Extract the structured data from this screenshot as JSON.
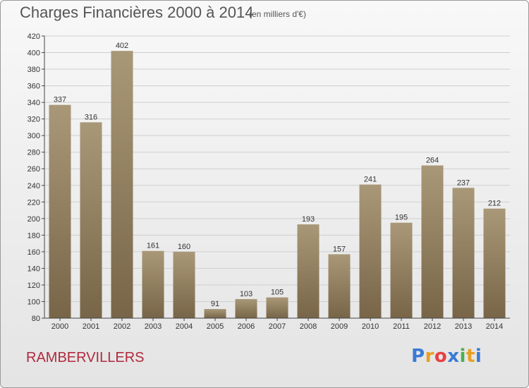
{
  "header": {
    "title": "Charges Financières 2000 à 2014",
    "subtitle": "(en milliers d'€)"
  },
  "footer": {
    "town": "RAMBERVILLERS",
    "logo_letters": [
      {
        "ch": "P",
        "color": "#3a7bd5"
      },
      {
        "ch": "r",
        "color": "#e8a020"
      },
      {
        "ch": "o",
        "color": "#e84040"
      },
      {
        "ch": "x",
        "color": "#3a7bd5"
      },
      {
        "ch": "i",
        "color": "#4caf50"
      },
      {
        "ch": "t",
        "color": "#e8a020"
      },
      {
        "ch": "i",
        "color": "#3a7bd5"
      }
    ]
  },
  "chart_data": {
    "type": "bar",
    "categories": [
      "2000",
      "2001",
      "2002",
      "2003",
      "2004",
      "2005",
      "2006",
      "2007",
      "2008",
      "2009",
      "2010",
      "2011",
      "2012",
      "2013",
      "2014"
    ],
    "values": [
      337,
      316,
      402,
      161,
      160,
      91,
      103,
      105,
      193,
      157,
      241,
      195,
      264,
      237,
      212
    ],
    "ylim": [
      80,
      420
    ],
    "yticks": [
      80,
      100,
      120,
      140,
      160,
      180,
      200,
      220,
      240,
      260,
      280,
      300,
      320,
      340,
      360,
      380,
      400,
      420
    ],
    "grid": true,
    "bar_color_top": "#a99878",
    "bar_color_bottom": "#786548",
    "grid_color": "#cfcfcf"
  }
}
